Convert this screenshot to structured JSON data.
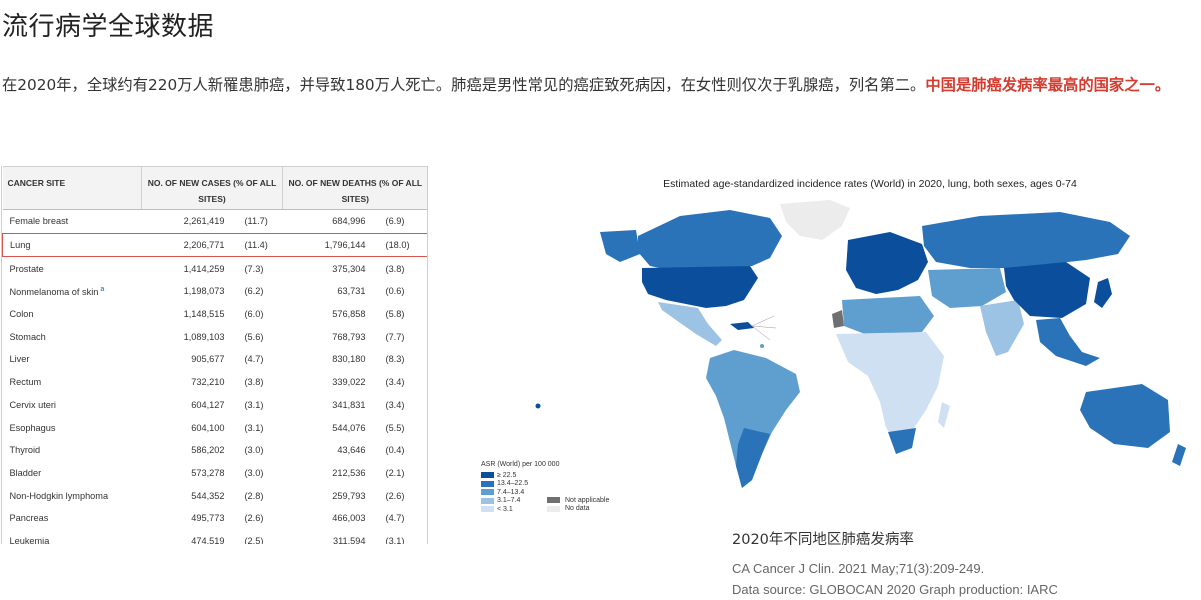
{
  "page": {
    "title": "流行病学全球数据",
    "intro_text": "在2020年，全球约有220万人新罹患肺癌，并导致180万人死亡。肺癌是男性常见的癌症致死病因，在女性则仅次于乳腺癌，列名第二。",
    "intro_highlight": "中国是肺癌发病率最高的国家之一。"
  },
  "table": {
    "headers": {
      "site": "CANCER SITE",
      "cases": "NO. OF NEW CASES (% OF ALL SITES)",
      "deaths": "NO. OF NEW DEATHS (% OF ALL SITES)"
    },
    "note_marker": "a",
    "rows": [
      {
        "site": "Female breast",
        "cases": "2,261,419",
        "cases_pct": "(11.7)",
        "deaths": "684,996",
        "deaths_pct": "(6.9)"
      },
      {
        "site": "Lung",
        "cases": "2,206,771",
        "cases_pct": "(11.4)",
        "deaths": "1,796,144",
        "deaths_pct": "(18.0)"
      },
      {
        "site": "Prostate",
        "cases": "1,414,259",
        "cases_pct": "(7.3)",
        "deaths": "375,304",
        "deaths_pct": "(3.8)"
      },
      {
        "site": "Nonmelanoma of skin",
        "cases": "1,198,073",
        "cases_pct": "(6.2)",
        "deaths": "63,731",
        "deaths_pct": "(0.6)"
      },
      {
        "site": "Colon",
        "cases": "1,148,515",
        "cases_pct": "(6.0)",
        "deaths": "576,858",
        "deaths_pct": "(5.8)"
      },
      {
        "site": "Stomach",
        "cases": "1,089,103",
        "cases_pct": "(5.6)",
        "deaths": "768,793",
        "deaths_pct": "(7.7)"
      },
      {
        "site": "Liver",
        "cases": "905,677",
        "cases_pct": "(4.7)",
        "deaths": "830,180",
        "deaths_pct": "(8.3)"
      },
      {
        "site": "Rectum",
        "cases": "732,210",
        "cases_pct": "(3.8)",
        "deaths": "339,022",
        "deaths_pct": "(3.4)"
      },
      {
        "site": "Cervix uteri",
        "cases": "604,127",
        "cases_pct": "(3.1)",
        "deaths": "341,831",
        "deaths_pct": "(3.4)"
      },
      {
        "site": "Esophagus",
        "cases": "604,100",
        "cases_pct": "(3.1)",
        "deaths": "544,076",
        "deaths_pct": "(5.5)"
      },
      {
        "site": "Thyroid",
        "cases": "586,202",
        "cases_pct": "(3.0)",
        "deaths": "43,646",
        "deaths_pct": "(0.4)"
      },
      {
        "site": "Bladder",
        "cases": "573,278",
        "cases_pct": "(3.0)",
        "deaths": "212,536",
        "deaths_pct": "(2.1)"
      },
      {
        "site": "Non-Hodgkin lymphoma",
        "cases": "544,352",
        "cases_pct": "(2.8)",
        "deaths": "259,793",
        "deaths_pct": "(2.6)"
      },
      {
        "site": "Pancreas",
        "cases": "495,773",
        "cases_pct": "(2.6)",
        "deaths": "466,003",
        "deaths_pct": "(4.7)"
      },
      {
        "site": "Leukemia",
        "cases": "474,519",
        "cases_pct": "(2.5)",
        "deaths": "311,594",
        "deaths_pct": "(3.1)"
      }
    ]
  },
  "map": {
    "title": "Estimated age-standardized incidence rates (World) in 2020, lung, both sexes, ages 0-74",
    "legend_title": "ASR (World) per 100 000",
    "legend": [
      {
        "label": "≥ 22.5",
        "color": "#0b4f9c"
      },
      {
        "label": "13.4–22.5",
        "color": "#2a73b8"
      },
      {
        "label": "7.4–13.4",
        "color": "#5f9fd0"
      },
      {
        "label": "3.1–7.4",
        "color": "#9cc3e4"
      },
      {
        "label": "< 3.1",
        "color": "#cfe0f2"
      }
    ],
    "legend_extra": [
      {
        "label": "Not applicable",
        "color": "#707070"
      },
      {
        "label": "No data",
        "color": "#ececec"
      }
    ]
  },
  "caption": {
    "title": "2020年不同地区肺癌发病率",
    "citation_1": "CA Cancer J Clin. 2021 May;71(3):209-249.",
    "citation_2": "Data source: GLOBOCAN 2020 Graph production: IARC"
  }
}
